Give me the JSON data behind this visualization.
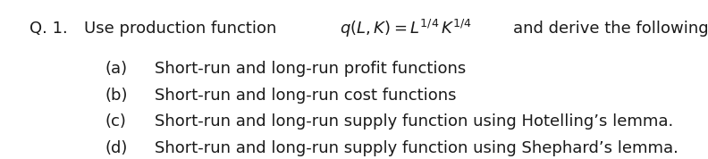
{
  "bg_color": "#ffffff",
  "text_color": "#1a1a1a",
  "fontsize": 13.0,
  "item_fontsize": 13.0,
  "q_label": "Q. 1.",
  "q_prefix": "Use production function ",
  "q_math": "$q(L, K) = L^{1/4}\\, K^{1/4}$",
  "q_suffix": "and derive the followings:",
  "items": [
    {
      "label": "(a)",
      "text": "Short-run and long-run profit functions"
    },
    {
      "label": "(b)",
      "text": "Short-run and long-run cost functions"
    },
    {
      "label": "(c)",
      "text": "Short-run and long-run supply function using Hotelling’s lemma."
    },
    {
      "label": "(d)",
      "text": "Short-run and long-run supply function using Shephard’s lemma."
    }
  ]
}
